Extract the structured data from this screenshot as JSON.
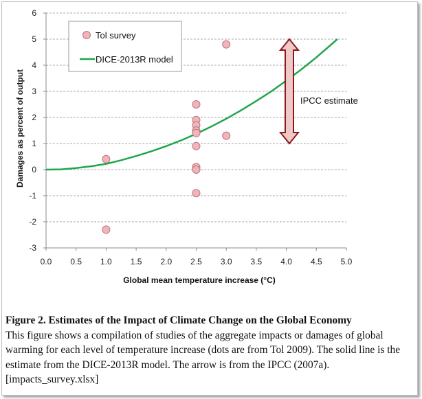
{
  "chart_data": {
    "type": "scatter",
    "title": "",
    "xlabel": "Global mean temperature increase (°C)",
    "ylabel": "Damages as percent of output",
    "xlim": [
      0,
      5
    ],
    "ylim": [
      -3,
      6
    ],
    "x_ticks": [
      "0.0",
      "0.5",
      "1.0",
      "1.5",
      "2.0",
      "2.5",
      "3.0",
      "3.5",
      "4.0",
      "4.5",
      "5.0"
    ],
    "y_ticks": [
      "-3",
      "-2",
      "-1",
      "0",
      "1",
      "2",
      "3",
      "4",
      "5",
      "6"
    ],
    "grid": "horizontal dashed",
    "legend_position": "top-left",
    "series": [
      {
        "name": "Tol survey",
        "kind": "points",
        "color": "#f4b3b6",
        "x": [
          1.0,
          1.0,
          2.5,
          2.5,
          2.5,
          2.5,
          2.5,
          2.5,
          2.5,
          2.5,
          2.5,
          3.0,
          3.0
        ],
        "y": [
          0.4,
          -2.3,
          2.5,
          1.9,
          1.7,
          1.5,
          1.4,
          0.9,
          0.1,
          0.0,
          -0.9,
          4.8,
          1.3
        ]
      },
      {
        "name": "DICE-2013R model",
        "kind": "line",
        "color": "#1fa64a",
        "x": [
          0,
          0.25,
          0.5,
          0.75,
          1.0,
          1.25,
          1.5,
          1.75,
          2.0,
          2.25,
          2.5,
          2.75,
          3.0,
          3.25,
          3.5,
          3.75,
          4.0,
          4.25,
          4.5,
          4.85
        ],
        "y": [
          0,
          0.01,
          0.06,
          0.13,
          0.22,
          0.36,
          0.52,
          0.7,
          0.9,
          1.12,
          1.37,
          1.65,
          1.95,
          2.28,
          2.63,
          3.0,
          3.41,
          3.84,
          4.3,
          5.0
        ]
      }
    ],
    "annotations": [
      {
        "type": "double-arrow",
        "label": "IPCC estimate",
        "x": 4.05,
        "y_from": 1.0,
        "y_to": 5.0
      }
    ]
  },
  "caption": {
    "title": "Figure 2. Estimates of the Impact of Climate Change on the Global Economy",
    "body": "This figure shows a compilation of studies of the aggregate impacts or damages of global warming for each level of temperature increase (dots are from Tol 2009). The solid line is the estimate from the DICE-2013R model. The arrow is from the IPCC (2007a). [impacts_survey.xlsx]"
  },
  "colors": {
    "point_fill": "#f4b3b6",
    "point_stroke": "#b07880",
    "line": "#1fa64a",
    "arrow_fill": "#efc8c8",
    "arrow_stroke": "#8c1a1a"
  }
}
